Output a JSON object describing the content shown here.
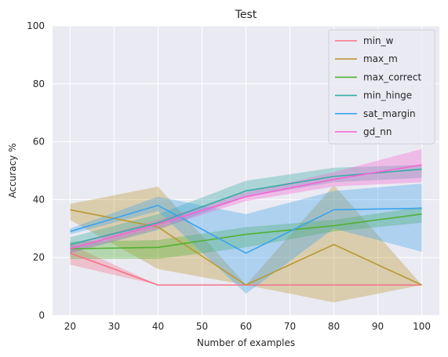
{
  "chart_data": {
    "type": "line",
    "title": "Test",
    "xlabel": "Number of examples",
    "ylabel": "Accuracy %",
    "x": [
      20,
      40,
      60,
      80,
      100
    ],
    "xlim": [
      16,
      104
    ],
    "ylim": [
      0,
      100
    ],
    "xticks": [
      20,
      30,
      40,
      50,
      60,
      70,
      80,
      90,
      100
    ],
    "yticks": [
      0,
      20,
      40,
      60,
      80,
      100
    ],
    "grid": true,
    "legend_position": "top-right",
    "series": [
      {
        "name": "min_w",
        "color": "#f77189",
        "values": [
          21.5,
          10.5,
          10.5,
          10.5,
          10.5
        ],
        "lower": [
          17.5,
          10.5,
          10.5,
          10.5,
          10.5
        ],
        "upper": [
          24.5,
          10.5,
          10.5,
          10.5,
          10.5
        ]
      },
      {
        "name": "max_m",
        "color": "#bb9832",
        "values": [
          36.5,
          30.5,
          10.5,
          24.5,
          10.5
        ],
        "lower": [
          33.0,
          16.0,
          10.5,
          4.5,
          10.5
        ],
        "upper": [
          38.5,
          44.5,
          10.5,
          45.0,
          10.5
        ]
      },
      {
        "name": "max_correct",
        "color": "#50b131",
        "values": [
          23.0,
          23.5,
          28.0,
          31.0,
          35.0
        ],
        "lower": [
          19.5,
          19.5,
          23.5,
          29.0,
          32.0
        ],
        "upper": [
          25.5,
          26.0,
          30.5,
          33.0,
          37.5
        ]
      },
      {
        "name": "min_hinge",
        "color": "#36ada4",
        "values": [
          24.5,
          32.0,
          43.0,
          48.0,
          50.5
        ],
        "lower": [
          21.5,
          29.5,
          41.0,
          46.0,
          47.5
        ],
        "upper": [
          27.0,
          35.0,
          46.5,
          51.0,
          52.0
        ]
      },
      {
        "name": "sat_margin",
        "color": "#3ba3ec",
        "values": [
          29.0,
          38.0,
          21.5,
          36.5,
          37.0
        ],
        "lower": [
          28.0,
          36.0,
          7.5,
          30.0,
          22.0
        ],
        "upper": [
          30.0,
          41.0,
          35.0,
          43.0,
          45.5
        ]
      },
      {
        "name": "gd_nn",
        "color": "#f564d4",
        "values": [
          23.0,
          31.5,
          41.0,
          47.0,
          52.0
        ],
        "lower": [
          21.5,
          30.0,
          39.5,
          44.5,
          46.0
        ],
        "upper": [
          24.5,
          33.0,
          42.5,
          49.5,
          57.5
        ]
      }
    ]
  }
}
